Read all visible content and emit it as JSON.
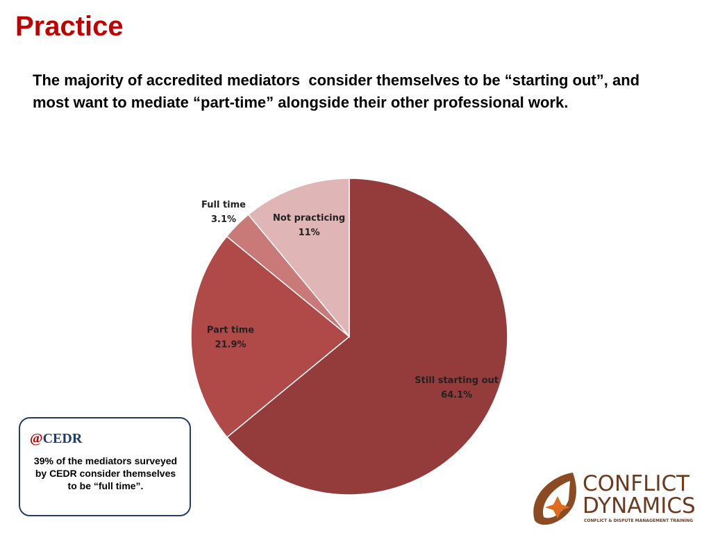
{
  "slide": {
    "title": "Practice",
    "text": "The majority of accredited mediators  consider themselves to be “starting out”, and most want to mediate “part-time” alongside their other professional work.",
    "callout": {
      "logo": "CEDR",
      "text": "39% of the mediators surveyed by CEDR consider themselves to be “full time”."
    },
    "brand": {
      "line1": "CONFLICT",
      "line2": "DYNAMICS",
      "tagline": "CONFLICT & DISPUTE MANAGEMENT TRAINING"
    }
  },
  "chart_data": {
    "type": "pie",
    "categories": [
      "Still starting out",
      "Part time",
      "Full time",
      "Not practicing"
    ],
    "values": [
      64.1,
      21.9,
      3.1,
      11
    ],
    "value_labels": [
      "64.1%",
      "21.9%",
      "3.1%",
      "11%"
    ],
    "colors": [
      "#943c3c",
      "#b04a48",
      "#c97a78",
      "#dfb5b5"
    ]
  }
}
